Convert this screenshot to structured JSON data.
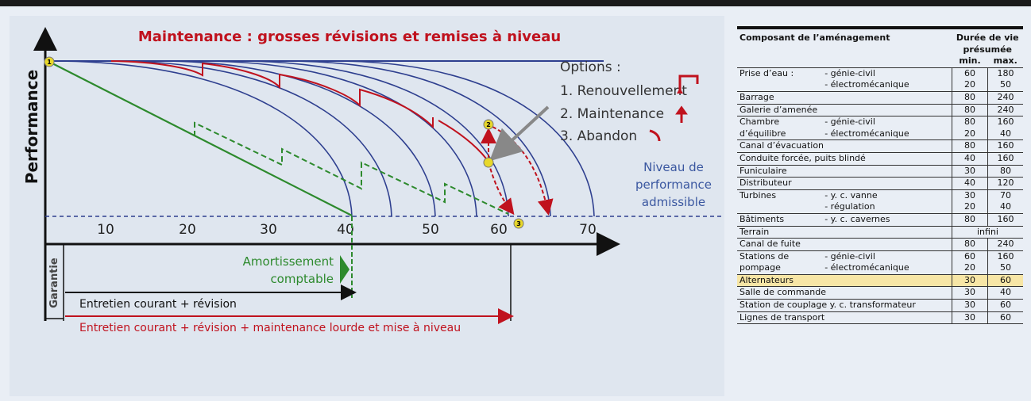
{
  "diagram": {
    "title": "Maintenance : grosses révisions et remises à niveau",
    "y_axis_label": "Performance",
    "x_ticks": [
      "10",
      "20",
      "30",
      "40",
      "50",
      "60",
      "70"
    ],
    "options": {
      "heading": "Options :",
      "items": [
        "1. Renouvellement",
        "2. Maintenance",
        "3. Abandon"
      ]
    },
    "markers": [
      "1",
      "2",
      "3"
    ],
    "threshold_label": [
      "Niveau de",
      "performance",
      "admissible"
    ],
    "depreciation_label": [
      "Amortissement",
      "comptable"
    ],
    "warranty_label": "Garantie",
    "maintenance_spans": [
      "Entretien courant + révision",
      "Entretien courant + révision + maintenance lourde et mise à niveau"
    ]
  },
  "table": {
    "headers": {
      "component": "Composant de l’aménagement",
      "lifespan": "Durée de vie présumée",
      "min": "min.",
      "max": "max."
    },
    "rows": [
      {
        "name": [
          "Prise d’eau :"
        ],
        "parts": [
          "- génie-civil",
          "- électromécanique"
        ],
        "min": [
          60,
          20
        ],
        "max": [
          180,
          50
        ]
      },
      {
        "name": [
          "Barrage"
        ],
        "min": [
          80
        ],
        "max": [
          240
        ]
      },
      {
        "name": [
          "Galerie d’amenée"
        ],
        "min": [
          80
        ],
        "max": [
          240
        ]
      },
      {
        "name": [
          "Chambre",
          "d’équilibre"
        ],
        "parts": [
          "- génie-civil",
          "- électromécanique"
        ],
        "min": [
          80,
          20
        ],
        "max": [
          160,
          40
        ]
      },
      {
        "name": [
          "Canal d’évacuation"
        ],
        "min": [
          80
        ],
        "max": [
          160
        ]
      },
      {
        "name": [
          "Conduite forcée, puits blindé"
        ],
        "min": [
          40
        ],
        "max": [
          160
        ]
      },
      {
        "name": [
          "Funiculaire"
        ],
        "min": [
          30
        ],
        "max": [
          80
        ]
      },
      {
        "name": [
          "Distributeur"
        ],
        "min": [
          40
        ],
        "max": [
          120
        ]
      },
      {
        "name": [
          "Turbines"
        ],
        "parts": [
          "- y. c. vanne",
          "- régulation"
        ],
        "min": [
          30,
          20
        ],
        "max": [
          70,
          40
        ]
      },
      {
        "name": [
          "Bâtiments"
        ],
        "parts": [
          "- y. c. cavernes"
        ],
        "min": [
          80
        ],
        "max": [
          160
        ]
      },
      {
        "name": [
          "Terrain"
        ],
        "lifespan": "infini"
      },
      {
        "name": [
          "Canal de fuite"
        ],
        "min": [
          80
        ],
        "max": [
          240
        ]
      },
      {
        "name": [
          "Stations de",
          "pompage"
        ],
        "parts": [
          "- génie-civil",
          "- électromécanique"
        ],
        "min": [
          60,
          20
        ],
        "max": [
          160,
          50
        ]
      },
      {
        "name": [
          "Alternateurs"
        ],
        "min": [
          30
        ],
        "max": [
          60
        ],
        "highlight": true
      },
      {
        "name": [
          "Salle de commande"
        ],
        "min": [
          30
        ],
        "max": [
          40
        ]
      },
      {
        "name": [
          "Station de couplage y. c. transformateur"
        ],
        "min": [
          30
        ],
        "max": [
          60
        ]
      },
      {
        "name": [
          "Lignes de transport"
        ],
        "min": [
          30
        ],
        "max": [
          60
        ]
      }
    ]
  }
}
